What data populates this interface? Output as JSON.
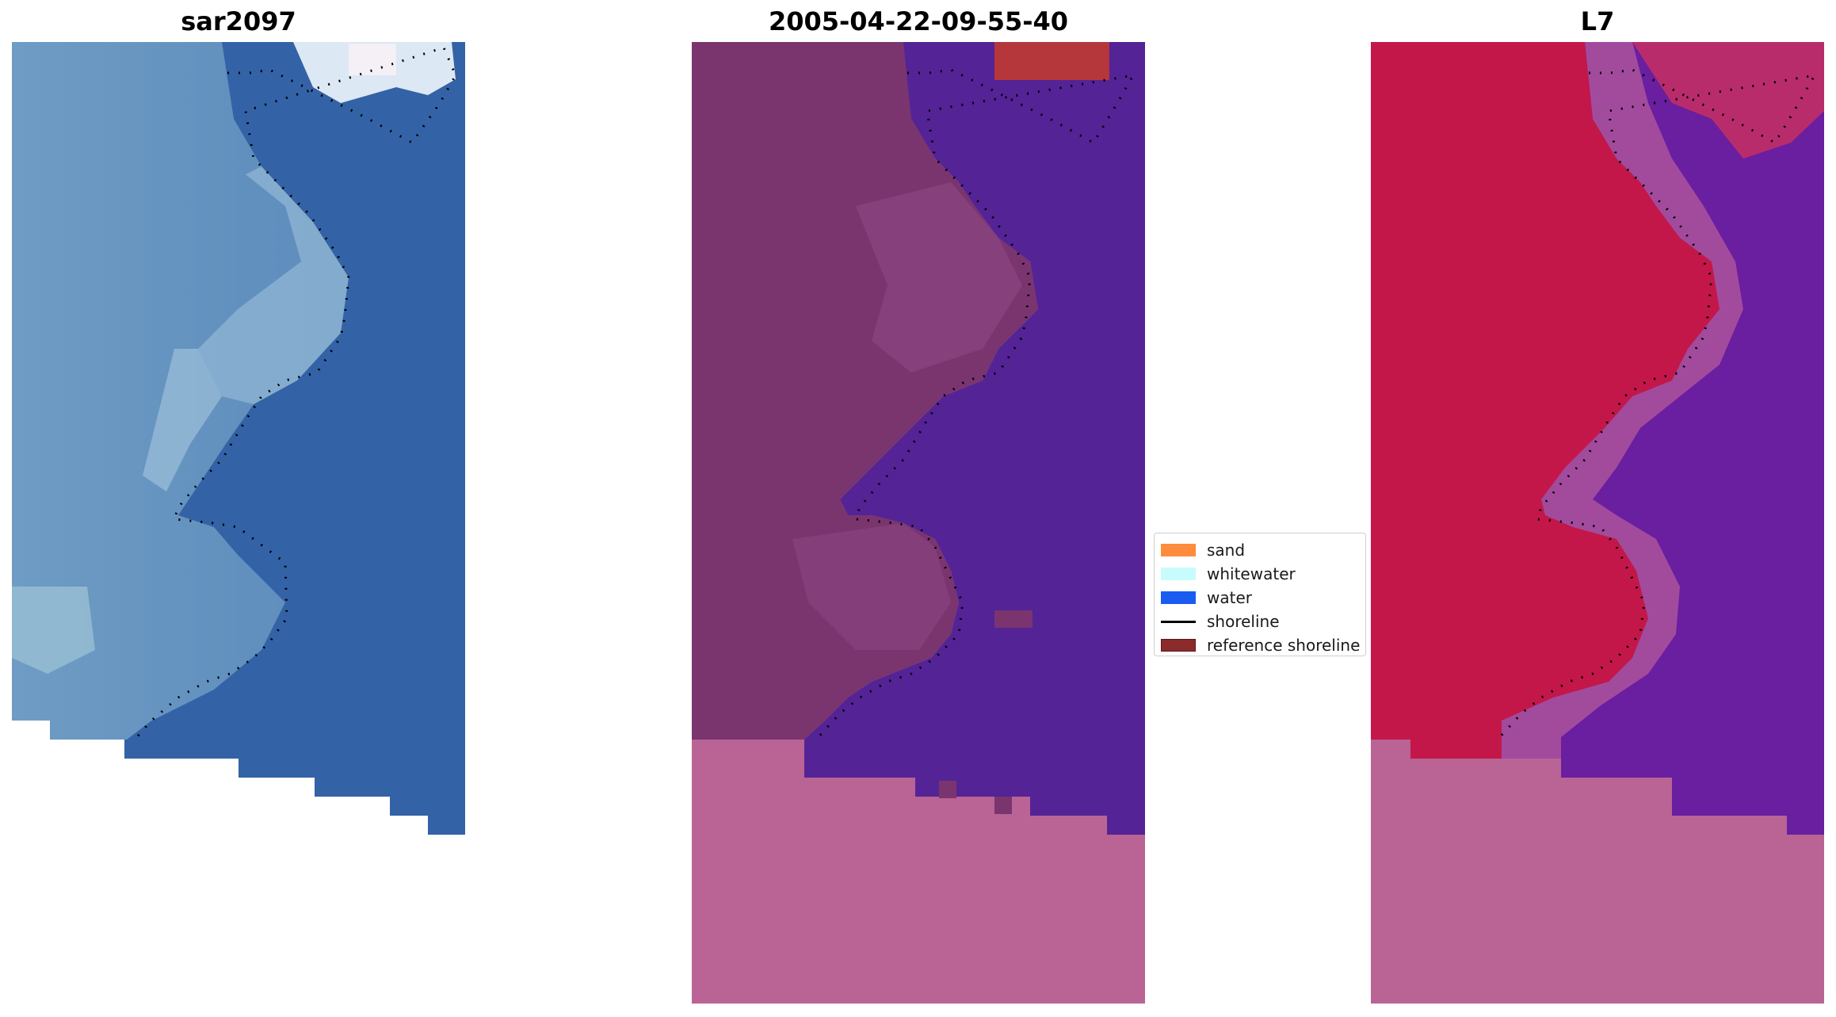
{
  "panels": {
    "sar": {
      "title": "sar2097"
    },
    "classified": {
      "title": "2005-04-22-09-55-40"
    },
    "mndwi": {
      "title": "L7"
    }
  },
  "legend": {
    "items": [
      {
        "label": "sand",
        "kind": "patch",
        "color": "#ff8c3c"
      },
      {
        "label": "whitewater",
        "kind": "patch",
        "color": "#c8fcfc"
      },
      {
        "label": "water",
        "kind": "patch",
        "color": "#1a5cf2"
      },
      {
        "label": "shoreline",
        "kind": "line",
        "color": "#000000"
      },
      {
        "label": "reference shoreline",
        "kind": "patch",
        "color": "#8b2b2b"
      }
    ]
  },
  "colors": {
    "sar_water": "#3462a6",
    "sar_land": "#5e8fbc",
    "sar_surf": "#dce8f4",
    "classified_water": "#542396",
    "classified_land": "#7a356f",
    "classified_nodata": "#b96494",
    "classified_reference": "#b5363b",
    "l7_land": "#c3174a",
    "l7_water": "#6a1ea0",
    "l7_nodata": "#b96494",
    "shoreline_dots": "#000000"
  }
}
